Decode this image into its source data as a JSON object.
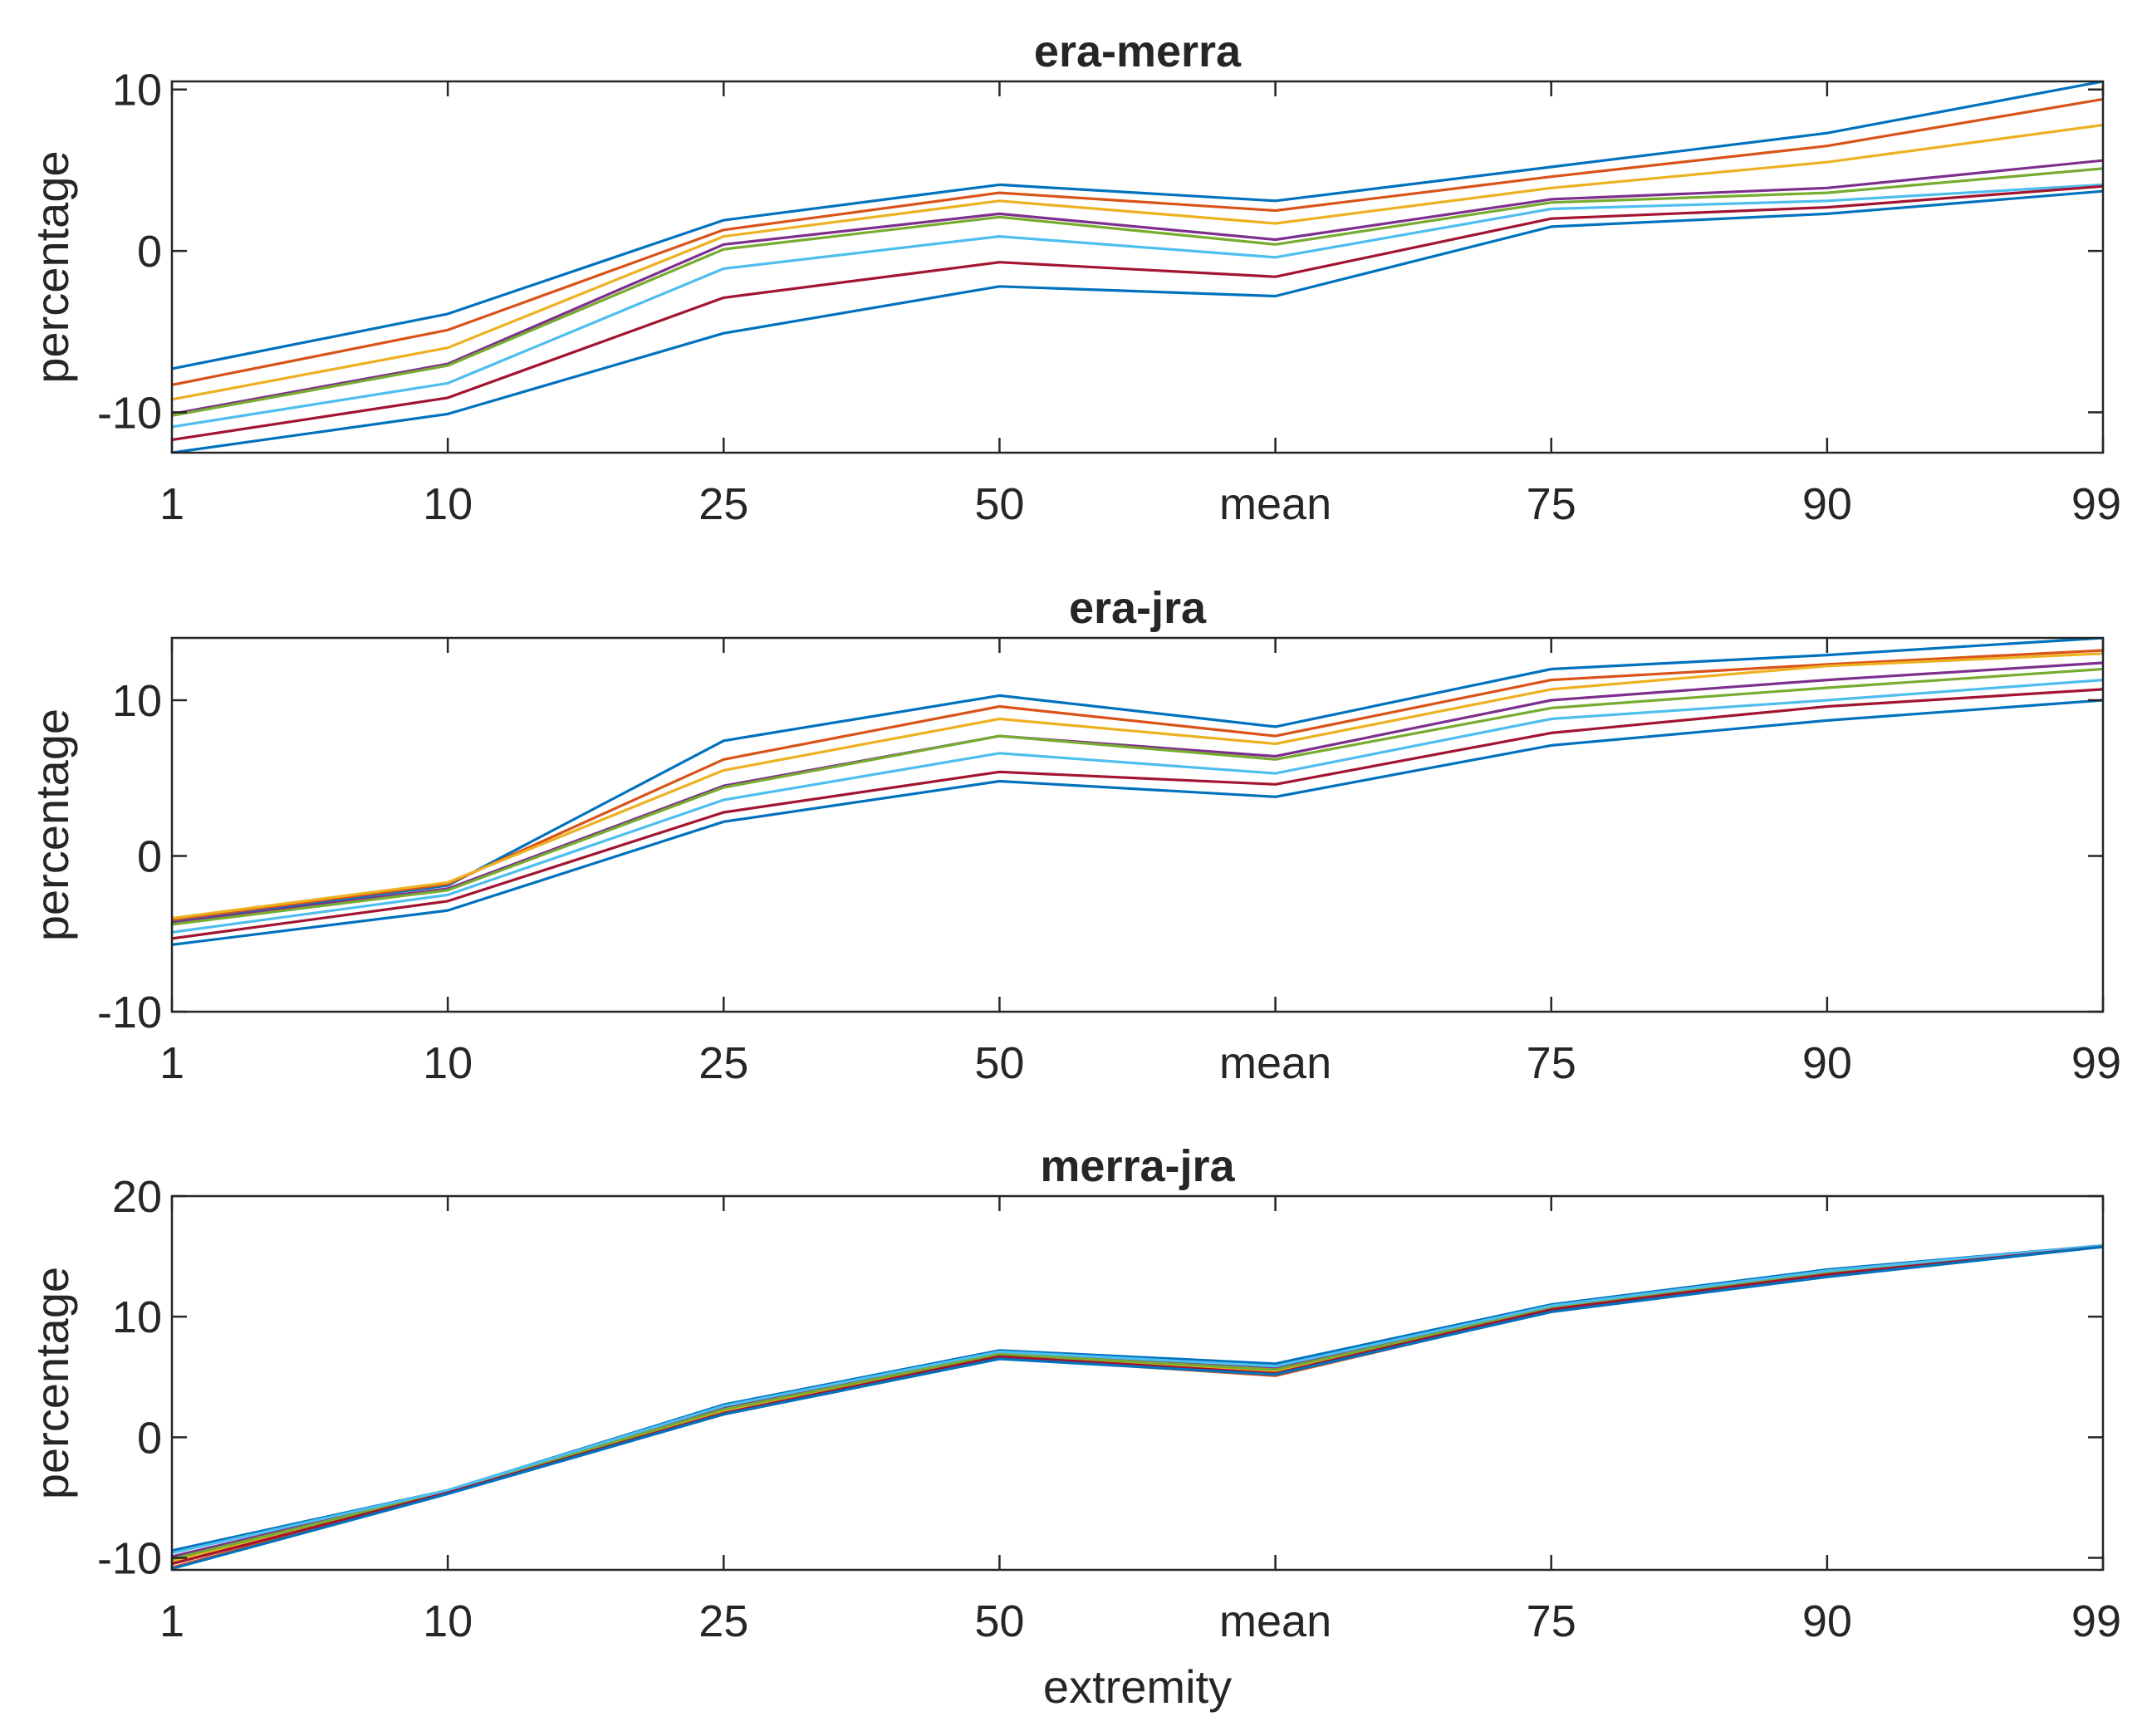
{
  "chart_data": [
    {
      "type": "line",
      "title": "era-merra",
      "xlabel": "",
      "ylabel": "percentage",
      "categories": [
        "1",
        "10",
        "25",
        "50",
        "mean",
        "75",
        "90",
        "99"
      ],
      "ylim": [
        -12.5,
        10.5
      ],
      "yticks": [
        -10,
        0,
        10
      ],
      "yticklabels": [
        "-10",
        "0",
        "10"
      ],
      "series": [
        {
          "name": "series 1",
          "color": "#0072BD",
          "values": [
            -7.3,
            -3.9,
            1.9,
            4.1,
            3.1,
            5.2,
            7.3,
            10.5
          ]
        },
        {
          "name": "series 2",
          "color": "#D95319",
          "values": [
            -8.3,
            -4.9,
            1.3,
            3.6,
            2.5,
            4.6,
            6.5,
            9.4
          ]
        },
        {
          "name": "series 3",
          "color": "#EDB120",
          "values": [
            -9.2,
            -6.0,
            0.9,
            3.1,
            1.7,
            3.9,
            5.5,
            7.8
          ]
        },
        {
          "name": "series 4",
          "color": "#7E2F8E",
          "values": [
            -10.1,
            -7.0,
            0.4,
            2.3,
            0.7,
            3.2,
            3.9,
            5.6
          ]
        },
        {
          "name": "series 5",
          "color": "#77AC30",
          "values": [
            -10.2,
            -7.1,
            0.1,
            2.1,
            0.4,
            3.0,
            3.6,
            5.1
          ]
        },
        {
          "name": "series 6",
          "color": "#4DBEEE",
          "values": [
            -10.9,
            -8.2,
            -1.1,
            0.9,
            -0.4,
            2.6,
            3.1,
            4.1
          ]
        },
        {
          "name": "series 7",
          "color": "#A2142F",
          "values": [
            -11.7,
            -9.1,
            -2.9,
            -0.7,
            -1.6,
            2.0,
            2.7,
            4.0
          ]
        },
        {
          "name": "series 8",
          "color": "#0072BD",
          "values": [
            -12.5,
            -10.1,
            -5.1,
            -2.2,
            -2.8,
            1.5,
            2.3,
            3.7
          ]
        }
      ]
    },
    {
      "type": "line",
      "title": "era-jra",
      "xlabel": "",
      "ylabel": "percentage",
      "categories": [
        "1",
        "10",
        "25",
        "50",
        "mean",
        "75",
        "90",
        "99"
      ],
      "ylim": [
        -10,
        14
      ],
      "yticks": [
        -10,
        0,
        10
      ],
      "yticklabels": [
        "-10",
        "0",
        "10"
      ],
      "series": [
        {
          "name": "series 1",
          "color": "#0072BD",
          "values": [
            -4.2,
            -1.9,
            7.4,
            10.3,
            8.3,
            12.0,
            12.9,
            14.0
          ]
        },
        {
          "name": "series 2",
          "color": "#D95319",
          "values": [
            -4.1,
            -1.8,
            6.2,
            9.6,
            7.7,
            11.3,
            12.3,
            13.2
          ]
        },
        {
          "name": "series 3",
          "color": "#EDB120",
          "values": [
            -4.0,
            -1.7,
            5.5,
            8.8,
            7.2,
            10.7,
            12.2,
            13.0
          ]
        },
        {
          "name": "series 4",
          "color": "#7E2F8E",
          "values": [
            -4.3,
            -2.1,
            4.5,
            7.7,
            6.4,
            10.0,
            11.3,
            12.4
          ]
        },
        {
          "name": "series 5",
          "color": "#77AC30",
          "values": [
            -4.4,
            -2.2,
            4.4,
            7.7,
            6.2,
            9.5,
            10.8,
            12.0
          ]
        },
        {
          "name": "series 6",
          "color": "#4DBEEE",
          "values": [
            -4.9,
            -2.5,
            3.6,
            6.6,
            5.3,
            8.8,
            10.0,
            11.3
          ]
        },
        {
          "name": "series 7",
          "color": "#A2142F",
          "values": [
            -5.3,
            -2.9,
            2.8,
            5.4,
            4.6,
            7.9,
            9.6,
            10.7
          ]
        },
        {
          "name": "series 8",
          "color": "#0072BD",
          "values": [
            -5.7,
            -3.5,
            2.2,
            4.8,
            3.8,
            7.1,
            8.7,
            10.0
          ]
        }
      ]
    },
    {
      "type": "line",
      "title": "merra-jra",
      "xlabel": "extremity",
      "ylabel": "percentage",
      "categories": [
        "1",
        "10",
        "25",
        "50",
        "mean",
        "75",
        "90",
        "99"
      ],
      "ylim": [
        -11,
        20
      ],
      "yticks": [
        -10,
        0,
        10,
        20
      ],
      "yticklabels": [
        "-10",
        "0",
        "10",
        "20"
      ],
      "series": [
        {
          "name": "series 1",
          "color": "#0072BD",
          "values": [
            -9.4,
            -4.4,
            2.7,
            7.2,
            6.1,
            11.0,
            13.9,
            15.9
          ]
        },
        {
          "name": "series 2",
          "color": "#D95319",
          "values": [
            -10.8,
            -4.6,
            1.9,
            6.6,
            5.1,
            10.5,
            13.4,
            15.8
          ]
        },
        {
          "name": "series 3",
          "color": "#EDB120",
          "values": [
            -10.3,
            -4.5,
            2.1,
            6.8,
            5.4,
            10.7,
            13.6,
            15.8
          ]
        },
        {
          "name": "series 4",
          "color": "#7E2F8E",
          "values": [
            -9.9,
            -4.5,
            2.4,
            7.0,
            5.7,
            10.8,
            13.7,
            15.9
          ]
        },
        {
          "name": "series 5",
          "color": "#77AC30",
          "values": [
            -10.1,
            -4.5,
            2.3,
            6.9,
            5.6,
            10.7,
            13.6,
            15.9
          ]
        },
        {
          "name": "series 6",
          "color": "#4DBEEE",
          "values": [
            -9.6,
            -4.4,
            2.6,
            7.1,
            5.9,
            10.9,
            13.8,
            15.9
          ]
        },
        {
          "name": "series 7",
          "color": "#A2142F",
          "values": [
            -10.5,
            -4.6,
            2.0,
            6.7,
            5.3,
            10.6,
            13.5,
            15.8
          ]
        },
        {
          "name": "series 8",
          "color": "#0072BD",
          "values": [
            -10.9,
            -4.7,
            1.9,
            6.5,
            5.2,
            10.4,
            13.3,
            15.8
          ]
        }
      ]
    }
  ]
}
